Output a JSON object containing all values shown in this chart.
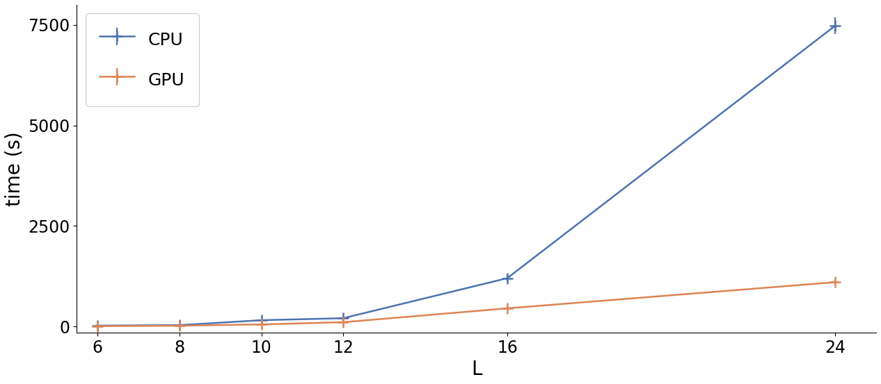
{
  "x": [
    6,
    8,
    10,
    12,
    16,
    24
  ],
  "cpu_y": [
    20,
    32,
    155,
    205,
    1200,
    7480
  ],
  "cpu_yerr": [
    15,
    12,
    25,
    20,
    80,
    200
  ],
  "gpu_y": [
    8,
    18,
    50,
    105,
    450,
    1100
  ],
  "gpu_yerr": [
    5,
    8,
    10,
    15,
    30,
    60
  ],
  "cpu_color": "#4C72B0",
  "gpu_color": "#DD8452",
  "xlabel": "L",
  "ylabel": "time (s)",
  "xticks": [
    6,
    8,
    10,
    12,
    16,
    24
  ],
  "yticks": [
    0,
    2500,
    5000,
    7500
  ],
  "ylim": [
    -150,
    8000
  ],
  "xlim": [
    5.5,
    25.0
  ],
  "legend_labels": [
    "CPU",
    "GPU"
  ],
  "legend_fontsize": 18,
  "axis_fontsize": 20,
  "tick_fontsize": 17,
  "linewidth": 1.8,
  "markersize": 12,
  "elinewidth": 1.6,
  "figsize": [
    12.66,
    5.53
  ],
  "dpi": 100
}
